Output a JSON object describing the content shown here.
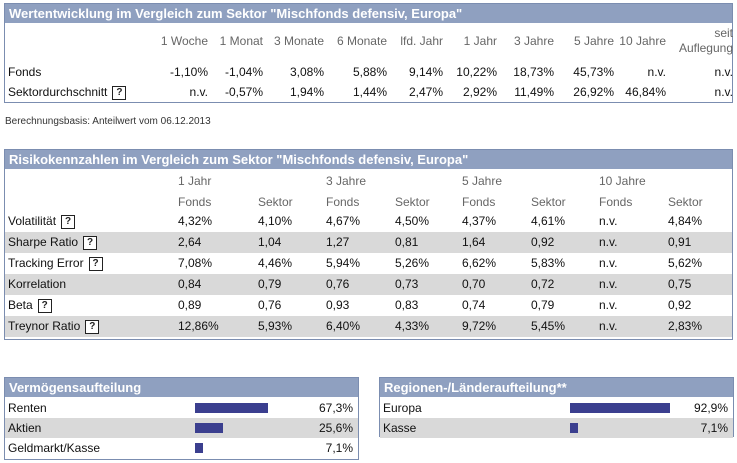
{
  "performance": {
    "title": "Wertentwicklung im Vergleich zum Sektor \"Mischfonds defensiv, Europa\"",
    "columns": [
      "1 Woche",
      "1 Monat",
      "3 Monate",
      "6 Monate",
      "lfd. Jahr",
      "1 Jahr",
      "3 Jahre",
      "5 Jahre",
      "10 Jahre"
    ],
    "last_column": [
      "seit",
      "Auflegung"
    ],
    "rows": [
      {
        "label": "Fonds",
        "values": [
          "-1,10%",
          "-1,04%",
          "3,08%",
          "5,88%",
          "9,14%",
          "10,22%",
          "18,73%",
          "45,73%",
          "n.v.",
          "n.v."
        ]
      },
      {
        "label": "Sektordurchschnitt",
        "help": "?",
        "values": [
          "n.v.",
          "-0,57%",
          "1,94%",
          "1,44%",
          "2,47%",
          "2,92%",
          "11,49%",
          "26,92%",
          "46,84%",
          "n.v."
        ]
      }
    ]
  },
  "basis_note": "Berechnungsbasis: Anteilwert vom 06.12.2013",
  "risk": {
    "title": "Risikokennzahlen im Vergleich zum Sektor \"Mischfonds defensiv, Europa\"",
    "periods": [
      "1 Jahr",
      "3 Jahre",
      "5 Jahre",
      "10 Jahre"
    ],
    "subcolumns": [
      "Fonds",
      "Sektor"
    ],
    "rows": [
      {
        "label": "Volatilität",
        "help": "?",
        "values": [
          "4,32%",
          "4,10%",
          "4,67%",
          "4,50%",
          "4,37%",
          "4,61%",
          "n.v.",
          "4,84%"
        ]
      },
      {
        "label": "Sharpe Ratio",
        "help": "?",
        "values": [
          "2,64",
          "1,04",
          "1,27",
          "0,81",
          "1,64",
          "0,92",
          "n.v.",
          "0,91"
        ]
      },
      {
        "label": "Tracking Error",
        "help": "?",
        "values": [
          "7,08%",
          "4,46%",
          "5,94%",
          "5,26%",
          "6,62%",
          "5,83%",
          "n.v.",
          "5,62%"
        ]
      },
      {
        "label": "Korrelation",
        "values": [
          "0,84",
          "0,79",
          "0,76",
          "0,73",
          "0,70",
          "0,72",
          "n.v.",
          "0,75"
        ]
      },
      {
        "label": "Beta",
        "help": "?",
        "values": [
          "0,89",
          "0,76",
          "0,93",
          "0,83",
          "0,74",
          "0,79",
          "n.v.",
          "0,92"
        ]
      },
      {
        "label": "Treynor Ratio",
        "help": "?",
        "values": [
          "12,86%",
          "5,93%",
          "6,40%",
          "4,33%",
          "9,72%",
          "5,45%",
          "n.v.",
          "2,83%"
        ]
      }
    ]
  },
  "assets": {
    "title": "Vermögensaufteilung",
    "items": [
      {
        "label": "Renten",
        "value": "67,3%",
        "share": 67.3
      },
      {
        "label": "Aktien",
        "value": "25,6%",
        "share": 25.6
      },
      {
        "label": "Geldmarkt/Kasse",
        "value": "7,1%",
        "share": 7.1
      }
    ]
  },
  "regions": {
    "title": "Regionen-/Länderaufteilung**",
    "items": [
      {
        "label": "Europa",
        "value": "92,9%",
        "share": 92.9
      },
      {
        "label": "Kasse",
        "value": "7,1%",
        "share": 7.1
      }
    ]
  },
  "colors": {
    "header": "#8fa0c0",
    "bar": "#3b3f8f",
    "alt_row": "#d9d9d9"
  }
}
